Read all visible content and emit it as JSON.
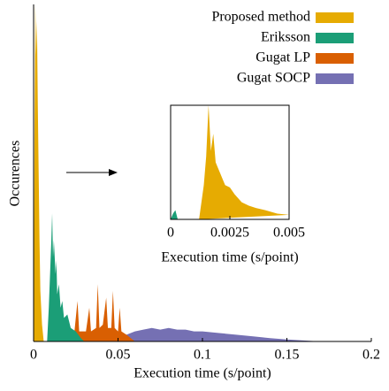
{
  "chart_data": {
    "type": "area",
    "xlabel": "Execution time (s/point)",
    "ylabel": "Occurences",
    "xlim": [
      0,
      0.2
    ],
    "xticks": [
      0,
      0.05,
      0.1,
      0.15,
      0.2
    ],
    "ylim": [
      0,
      100
    ],
    "series": [
      {
        "name": "Gugat SOCP",
        "color": "#7570b3",
        "x": [
          0.05,
          0.055,
          0.06,
          0.065,
          0.07,
          0.075,
          0.08,
          0.085,
          0.09,
          0.095,
          0.1,
          0.11,
          0.12,
          0.13,
          0.14,
          0.15,
          0.16,
          0.17
        ],
        "values": [
          0,
          2,
          3,
          3.5,
          4,
          3.5,
          4,
          3.5,
          3.5,
          3,
          3,
          2.5,
          2,
          1.5,
          1,
          0.6,
          0.3,
          0
        ]
      },
      {
        "name": "Gugat LP",
        "color": "#d95f02",
        "x": [
          0.02,
          0.024,
          0.026,
          0.027,
          0.031,
          0.033,
          0.034,
          0.037,
          0.038,
          0.039,
          0.041,
          0.043,
          0.044,
          0.046,
          0.047,
          0.048,
          0.05,
          0.051,
          0.052,
          0.055,
          0.06
        ],
        "values": [
          0,
          2,
          12,
          3,
          3,
          10,
          3,
          4,
          17,
          4,
          5,
          13,
          4,
          4,
          15,
          4,
          3,
          10,
          3,
          2,
          0
        ]
      },
      {
        "name": "Eriksson",
        "color": "#1b9e77",
        "x": [
          0.008,
          0.009,
          0.0105,
          0.011,
          0.0115,
          0.012,
          0.013,
          0.0135,
          0.014,
          0.015,
          0.016,
          0.017,
          0.018,
          0.02,
          0.022,
          0.025,
          0.028,
          0.03
        ],
        "values": [
          0,
          10,
          30,
          38,
          25,
          30,
          20,
          24,
          14,
          17,
          10,
          12,
          7,
          8,
          4,
          3,
          1,
          0
        ]
      },
      {
        "name": "Proposed method",
        "color": "#e6ab02",
        "x": [
          0,
          0.0005,
          0.001,
          0.0015,
          0.002,
          0.0025,
          0.003,
          0.0035,
          0.004,
          0.005,
          0.006
        ],
        "values": [
          0,
          60,
          100,
          85,
          95,
          70,
          50,
          30,
          15,
          5,
          0
        ]
      }
    ],
    "inset": {
      "xlabel": "Execution time (s/point)",
      "xlim": [
        0,
        0.005
      ],
      "xticks": [
        0,
        0.0025,
        0.005
      ],
      "ylim": [
        0,
        100
      ],
      "series": [
        {
          "color": "#1b9e77",
          "x": [
            0,
            0.0001,
            0.0002,
            0.0003
          ],
          "values": [
            0,
            5,
            8,
            0
          ]
        },
        {
          "color": "#e6ab02",
          "x": [
            0.0012,
            0.0013,
            0.0014,
            0.0015,
            0.0016,
            0.0017,
            0.0018,
            0.0019,
            0.002,
            0.0021,
            0.0022,
            0.0023,
            0.0025,
            0.0027,
            0.003,
            0.0033,
            0.0036,
            0.004,
            0.0045,
            0.005
          ],
          "values": [
            0,
            15,
            30,
            55,
            100,
            60,
            75,
            50,
            45,
            40,
            35,
            30,
            28,
            22,
            15,
            12,
            10,
            8,
            5,
            4
          ]
        }
      ]
    }
  }
}
